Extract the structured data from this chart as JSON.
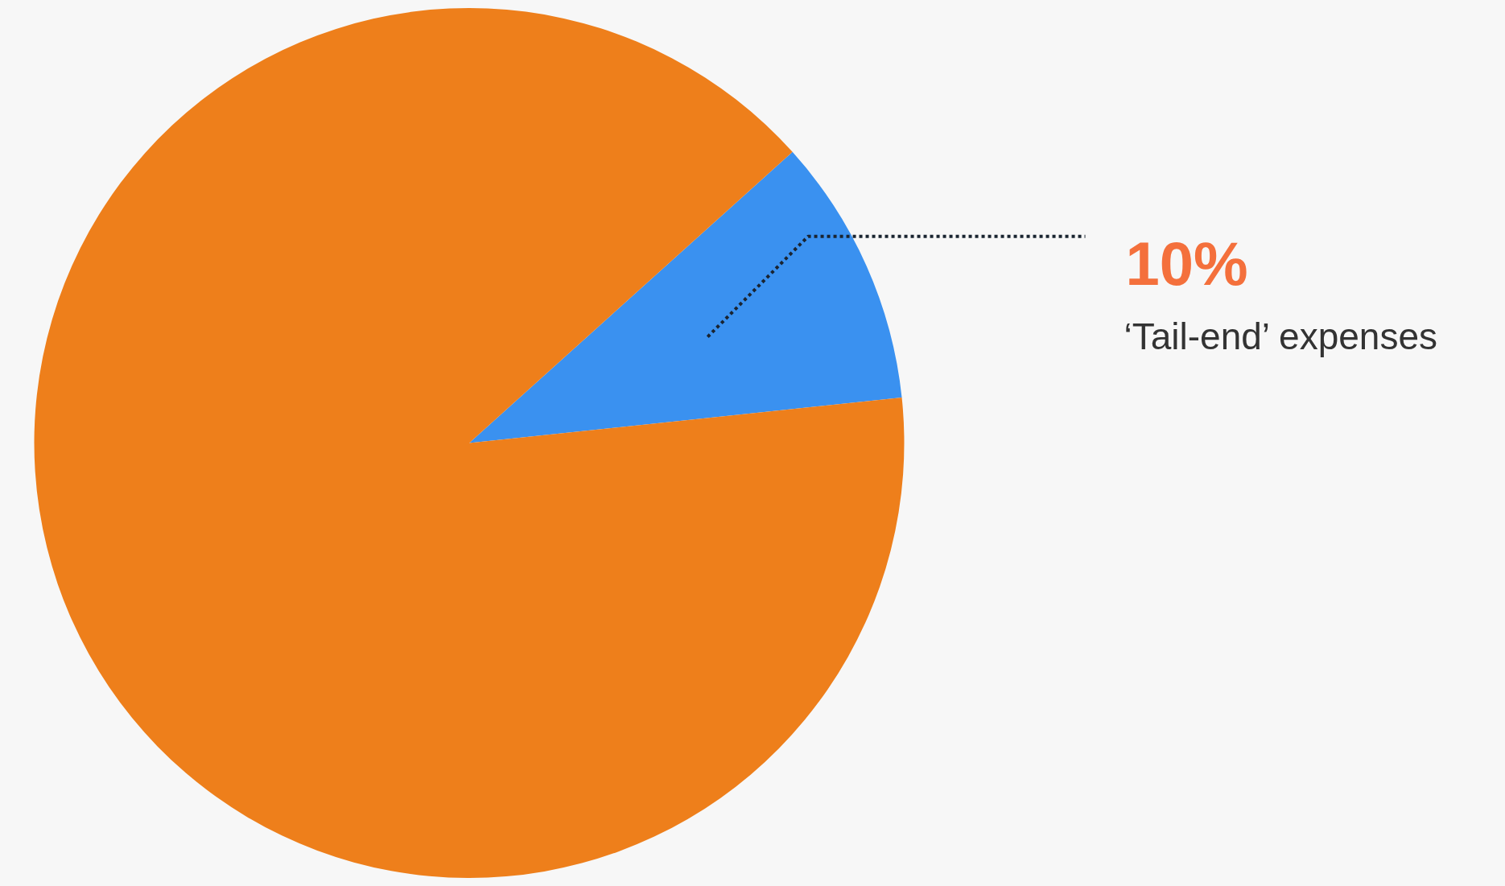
{
  "chart_data": {
    "type": "pie",
    "categories": [
      "‘Tail-end’ expenses",
      null
    ],
    "values": [
      10,
      90
    ],
    "colors": [
      "#3a91f0",
      "#ee7f1b"
    ],
    "value_labels": [
      "10%",
      null
    ],
    "legend": false
  }
}
